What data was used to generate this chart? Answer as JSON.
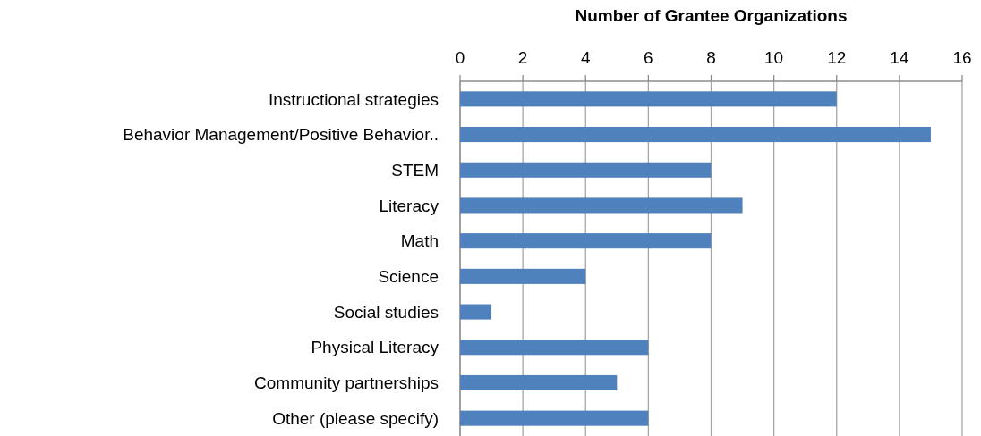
{
  "chart_data": {
    "type": "bar",
    "orientation": "horizontal",
    "xlabel": "Number of Grantee Organizations",
    "categories": [
      "Instructional strategies",
      "Behavior Management/Positive Behavior..",
      "STEM",
      "Literacy",
      "Math",
      "Science",
      "Social studies",
      "Physical Literacy",
      "Community partnerships",
      "Other (please specify)"
    ],
    "values": [
      12,
      15,
      8,
      9,
      8,
      4,
      1,
      6,
      5,
      6
    ],
    "color": "#4f81bd",
    "xlim": [
      0,
      16
    ],
    "xticks": [
      0,
      2,
      4,
      6,
      8,
      10,
      12,
      14,
      16
    ],
    "grid": "x"
  }
}
